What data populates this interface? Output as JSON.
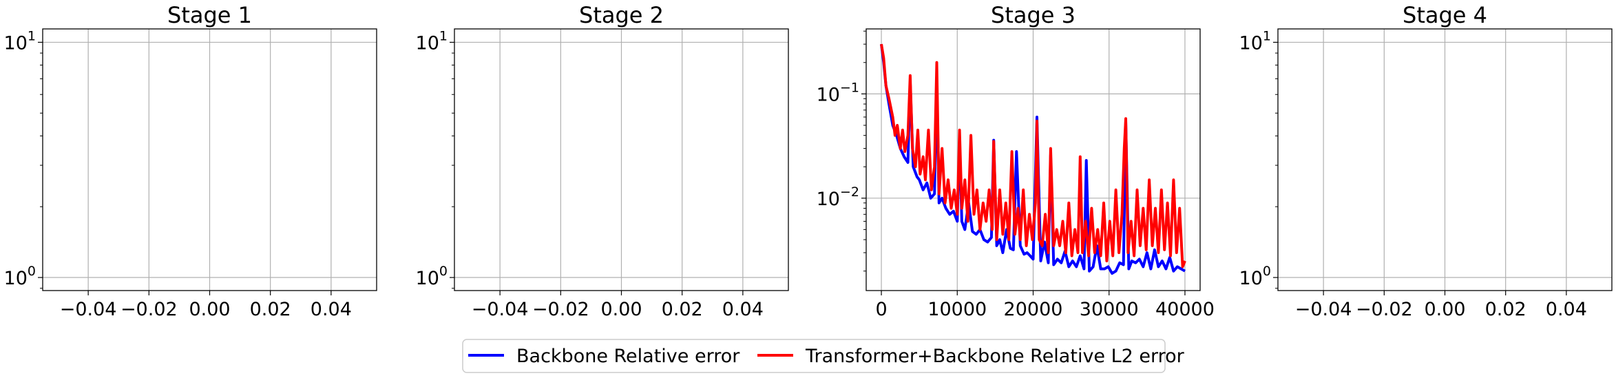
{
  "legend": {
    "entries": [
      {
        "label": "Backbone Relative error",
        "color": "#0000ff"
      },
      {
        "label": "Transformer+Backbone Relative L2 error",
        "color": "#ff0000"
      }
    ],
    "location": "bottom-center"
  },
  "chart_data": [
    {
      "type": "line",
      "title": "Stage 1",
      "xlabel": "",
      "ylabel": "",
      "yscale": "log",
      "xlim": [
        -0.055,
        0.055
      ],
      "ylim": [
        0.88,
        11.4
      ],
      "xticks": [
        -0.04,
        -0.02,
        0.0,
        0.02,
        0.04
      ],
      "xticklabels": [
        "−0.04",
        "−0.02",
        "0.00",
        "0.02",
        "0.04"
      ],
      "yticks": [
        1,
        10
      ],
      "yticklabels": [
        {
          "base": "10",
          "exp": "0"
        },
        {
          "base": "10",
          "exp": "1"
        }
      ],
      "grid": true,
      "series": []
    },
    {
      "type": "line",
      "title": "Stage 2",
      "xlabel": "",
      "ylabel": "",
      "yscale": "log",
      "xlim": [
        -0.055,
        0.055
      ],
      "ylim": [
        0.88,
        11.4
      ],
      "xticks": [
        -0.04,
        -0.02,
        0.0,
        0.02,
        0.04
      ],
      "xticklabels": [
        "−0.04",
        "−0.02",
        "0.00",
        "0.02",
        "0.04"
      ],
      "yticks": [
        1,
        10
      ],
      "yticklabels": [
        {
          "base": "10",
          "exp": "0"
        },
        {
          "base": "10",
          "exp": "1"
        }
      ],
      "grid": true,
      "series": []
    },
    {
      "type": "line",
      "title": "Stage 3",
      "xlabel": "",
      "ylabel": "",
      "yscale": "log",
      "xlim": [
        -2000,
        42000
      ],
      "ylim": [
        0.0013,
        0.42
      ],
      "xticks": [
        0,
        10000,
        20000,
        30000,
        40000
      ],
      "xticklabels": [
        "0",
        "10000",
        "20000",
        "30000",
        "40000"
      ],
      "yticks": [
        0.01,
        0.1
      ],
      "yticklabels": [
        {
          "base": "10",
          "exp": "−2"
        },
        {
          "base": "10",
          "exp": "−1"
        }
      ],
      "grid": true,
      "series": [
        {
          "name": "Backbone Relative error",
          "color": "#0000ff",
          "x": [
            0,
            300,
            600,
            1000,
            1500,
            2000,
            2500,
            3000,
            3500,
            3800,
            4200,
            4700,
            5000,
            5500,
            6000,
            6500,
            7000,
            7300,
            7600,
            8000,
            8500,
            9000,
            9500,
            10000,
            10300,
            10600,
            11000,
            11500,
            12000,
            12500,
            13000,
            13500,
            14000,
            14500,
            14800,
            15200,
            15600,
            16000,
            16500,
            17000,
            17400,
            17800,
            18300,
            18800,
            19200,
            19600,
            20000,
            20500,
            21000,
            21500,
            22000,
            22300,
            22700,
            23200,
            23700,
            24200,
            24700,
            25200,
            25700,
            26200,
            26700,
            27000,
            27400,
            27900,
            28400,
            28900,
            29400,
            29900,
            30400,
            30900,
            31400,
            31900,
            32200,
            32600,
            33000,
            33500,
            34000,
            34500,
            35000,
            35500,
            36000,
            36500,
            37000,
            37500,
            38000,
            38500,
            39000,
            39500,
            40000
          ],
          "values": [
            0.3,
            0.2,
            0.12,
            0.08,
            0.05,
            0.04,
            0.03,
            0.025,
            0.022,
            0.13,
            0.02,
            0.016,
            0.015,
            0.012,
            0.014,
            0.01,
            0.011,
            0.13,
            0.009,
            0.01,
            0.008,
            0.007,
            0.0075,
            0.006,
            0.035,
            0.006,
            0.005,
            0.009,
            0.0048,
            0.0045,
            0.005,
            0.004,
            0.0038,
            0.0042,
            0.036,
            0.0035,
            0.004,
            0.003,
            0.005,
            0.0033,
            0.0032,
            0.028,
            0.0035,
            0.0029,
            0.003,
            0.0028,
            0.0026,
            0.06,
            0.0025,
            0.0038,
            0.0024,
            0.026,
            0.0023,
            0.0026,
            0.0024,
            0.0031,
            0.0022,
            0.0025,
            0.0022,
            0.0028,
            0.0021,
            0.023,
            0.002,
            0.0022,
            0.0035,
            0.0021,
            0.0021,
            0.0022,
            0.0019,
            0.002,
            0.0024,
            0.0023,
            0.055,
            0.0021,
            0.0025,
            0.0024,
            0.0026,
            0.0022,
            0.003,
            0.0021,
            0.0032,
            0.0022,
            0.0025,
            0.0021,
            0.0027,
            0.002,
            0.0022,
            0.0021,
            0.002
          ]
        },
        {
          "name": "Transformer+Backbone Relative L2 error",
          "color": "#ff0000",
          "x": [
            0,
            300,
            600,
            1000,
            1500,
            1800,
            2100,
            2500,
            2800,
            3100,
            3500,
            3800,
            4100,
            4500,
            4800,
            5100,
            5500,
            5800,
            6200,
            6600,
            7000,
            7300,
            7600,
            8000,
            8400,
            8800,
            9200,
            9600,
            10000,
            10300,
            10600,
            11000,
            11400,
            11800,
            12200,
            12600,
            13000,
            13400,
            13800,
            14200,
            14600,
            14800,
            15200,
            15600,
            16000,
            16400,
            16800,
            17200,
            17600,
            18000,
            18300,
            18700,
            19100,
            19500,
            19900,
            20300,
            20500,
            20800,
            21200,
            21600,
            22000,
            22300,
            22700,
            23100,
            23500,
            23900,
            24300,
            24700,
            25100,
            25500,
            25900,
            26200,
            26500,
            26900,
            27300,
            27700,
            28100,
            28500,
            28900,
            29300,
            29700,
            30100,
            30500,
            30900,
            31300,
            31700,
            32000,
            32200,
            32500,
            32900,
            33300,
            33700,
            34100,
            34500,
            34900,
            35300,
            35700,
            36100,
            36500,
            36900,
            37300,
            37700,
            38100,
            38500,
            38900,
            39300,
            39700,
            40000
          ],
          "values": [
            0.3,
            0.22,
            0.12,
            0.09,
            0.06,
            0.04,
            0.05,
            0.03,
            0.045,
            0.028,
            0.04,
            0.15,
            0.03,
            0.02,
            0.045,
            0.017,
            0.025,
            0.015,
            0.045,
            0.012,
            0.02,
            0.2,
            0.011,
            0.03,
            0.009,
            0.015,
            0.008,
            0.012,
            0.007,
            0.045,
            0.008,
            0.015,
            0.006,
            0.04,
            0.007,
            0.012,
            0.005,
            0.009,
            0.006,
            0.012,
            0.005,
            0.035,
            0.004,
            0.012,
            0.0045,
            0.009,
            0.004,
            0.028,
            0.0045,
            0.008,
            0.004,
            0.012,
            0.0035,
            0.007,
            0.004,
            0.009,
            0.055,
            0.004,
            0.0035,
            0.007,
            0.003,
            0.03,
            0.0035,
            0.005,
            0.0035,
            0.006,
            0.003,
            0.009,
            0.0028,
            0.005,
            0.003,
            0.025,
            0.003,
            0.006,
            0.0028,
            0.008,
            0.003,
            0.005,
            0.0028,
            0.009,
            0.0025,
            0.006,
            0.0028,
            0.012,
            0.003,
            0.007,
            0.03,
            0.058,
            0.003,
            0.006,
            0.0028,
            0.012,
            0.0035,
            0.008,
            0.0032,
            0.015,
            0.0035,
            0.008,
            0.003,
            0.012,
            0.0032,
            0.009,
            0.0028,
            0.015,
            0.003,
            0.008,
            0.0022,
            0.0025
          ]
        }
      ]
    },
    {
      "type": "line",
      "title": "Stage 4",
      "xlabel": "",
      "ylabel": "",
      "yscale": "log",
      "xlim": [
        -0.055,
        0.055
      ],
      "ylim": [
        0.88,
        11.4
      ],
      "xticks": [
        -0.04,
        -0.02,
        0.0,
        0.02,
        0.04
      ],
      "xticklabels": [
        "−0.04",
        "−0.02",
        "0.00",
        "0.02",
        "0.04"
      ],
      "yticks": [
        1,
        10
      ],
      "yticklabels": [
        {
          "base": "10",
          "exp": "0"
        },
        {
          "base": "10",
          "exp": "1"
        }
      ],
      "grid": true,
      "series": []
    }
  ]
}
